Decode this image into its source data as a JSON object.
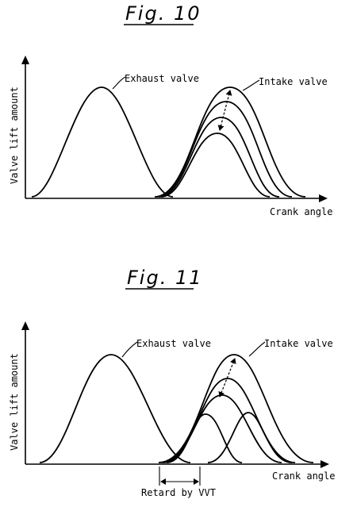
{
  "fig10": {
    "title": "Fig. 10",
    "ylabel": "Valve lift amount",
    "xlabel": "Crank angle",
    "exhaust_label": "Exhaust valve",
    "intake_label": "Intake valve"
  },
  "fig11": {
    "title": "Fig. 11",
    "ylabel": "Valve lift amount",
    "xlabel": "Crank angle",
    "exhaust_label": "Exhaust valve",
    "intake_label": "Intake valve",
    "retard_label": "Retard by VVT"
  }
}
